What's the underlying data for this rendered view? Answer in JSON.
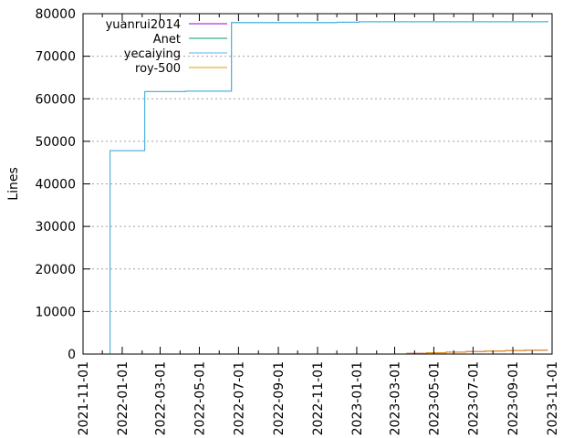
{
  "chart_data": {
    "type": "line",
    "ylabel": "Lines",
    "xlabel": "",
    "title": "",
    "xlim": [
      "2021-11-01",
      "2023-11-01"
    ],
    "ylim": [
      0,
      80000
    ],
    "grid": true,
    "legend_position": "top-left",
    "x_ticks": [
      "2021-11-01",
      "2022-01-01",
      "2022-03-01",
      "2022-05-01",
      "2022-07-01",
      "2022-09-01",
      "2022-11-01",
      "2023-01-01",
      "2023-03-01",
      "2023-05-01",
      "2023-07-01",
      "2023-09-01",
      "2023-11-01"
    ],
    "y_ticks": [
      0,
      10000,
      20000,
      30000,
      40000,
      50000,
      60000,
      70000,
      80000
    ],
    "series": [
      {
        "name": "yuanrui2014",
        "color": "#9400d3",
        "step": true,
        "points": [
          [
            "2023-02-15",
            0
          ],
          [
            "2023-03-20",
            150
          ],
          [
            "2023-04-20",
            300
          ],
          [
            "2023-05-20",
            450
          ],
          [
            "2023-06-20",
            600
          ],
          [
            "2023-07-20",
            700
          ],
          [
            "2023-08-20",
            800
          ],
          [
            "2023-09-20",
            900
          ],
          [
            "2023-10-25",
            950
          ]
        ]
      },
      {
        "name": "Anet",
        "color": "#009e73",
        "step": true,
        "points": [
          [
            "2021-12-13",
            0
          ],
          [
            "2021-12-13",
            47800
          ],
          [
            "2022-02-05",
            47800
          ],
          [
            "2022-02-05",
            61700
          ],
          [
            "2022-04-10",
            61800
          ],
          [
            "2022-06-20",
            61900
          ],
          [
            "2022-06-20",
            77900
          ],
          [
            "2022-12-01",
            77900
          ],
          [
            "2022-12-01",
            78000
          ],
          [
            "2023-01-05",
            78100
          ],
          [
            "2023-10-25",
            78300
          ]
        ]
      },
      {
        "name": "yecaiying",
        "color": "#56b4e9",
        "step": true,
        "points": [
          [
            "2021-12-13",
            0
          ],
          [
            "2021-12-13",
            47800
          ],
          [
            "2022-02-05",
            47800
          ],
          [
            "2022-02-05",
            61700
          ],
          [
            "2022-04-10",
            61800
          ],
          [
            "2022-06-20",
            61900
          ],
          [
            "2022-06-20",
            77900
          ],
          [
            "2022-12-01",
            77900
          ],
          [
            "2022-12-01",
            78000
          ],
          [
            "2023-01-05",
            78100
          ],
          [
            "2023-10-25",
            78300
          ]
        ]
      },
      {
        "name": "roy-500",
        "color": "#e69f00",
        "step": true,
        "points": [
          [
            "2023-02-15",
            0
          ],
          [
            "2023-03-20",
            150
          ],
          [
            "2023-04-20",
            300
          ],
          [
            "2023-05-20",
            450
          ],
          [
            "2023-06-20",
            600
          ],
          [
            "2023-07-20",
            700
          ],
          [
            "2023-08-20",
            800
          ],
          [
            "2023-09-20",
            900
          ],
          [
            "2023-10-25",
            950
          ]
        ]
      }
    ]
  }
}
